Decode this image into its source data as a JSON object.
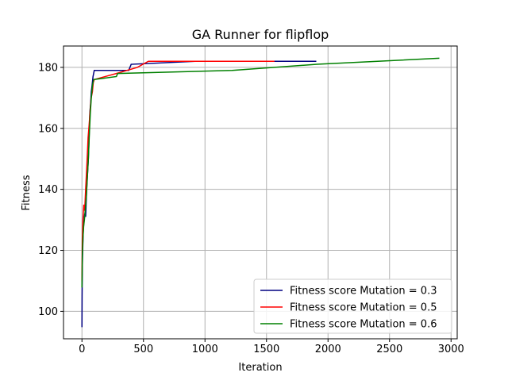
{
  "chart_data": {
    "type": "line",
    "title": "GA Runner for flipflop",
    "xlabel": "Iteration",
    "ylabel": "Fitness",
    "xlim": [
      -150,
      3050
    ],
    "ylim": [
      91,
      187
    ],
    "xticks": [
      0,
      500,
      1000,
      1500,
      2000,
      2500,
      3000
    ],
    "xtick_labels": [
      "0",
      "500",
      "1000",
      "1500",
      "2000",
      "2500",
      "3000"
    ],
    "yticks": [
      100,
      120,
      140,
      160,
      180
    ],
    "ytick_labels": [
      "100",
      "120",
      "140",
      "160",
      "180"
    ],
    "grid": true,
    "legend_position": "lower-right",
    "series": [
      {
        "name": "Fitness score Mutation = 0.3",
        "color": "#000080",
        "x": [
          0,
          0,
          1,
          1,
          3,
          3,
          6,
          6,
          10,
          10,
          15,
          15,
          22,
          22,
          30,
          30,
          38,
          38,
          45,
          45,
          52,
          52,
          58,
          58,
          64,
          64,
          70,
          70,
          76,
          76,
          82,
          82,
          90,
          90,
          100,
          100,
          380,
          380,
          400,
          400,
          920,
          920,
          1900,
          1900
        ],
        "y": [
          95,
          95,
          105,
          105,
          115,
          115,
          120,
          120,
          126,
          126,
          129,
          129,
          132,
          132,
          131,
          131,
          140,
          140,
          145,
          145,
          150,
          150,
          157,
          157,
          165,
          165,
          168,
          168,
          172,
          172,
          174,
          174,
          177,
          177,
          179,
          179,
          179,
          179,
          181,
          181,
          182,
          182,
          182,
          182
        ]
      },
      {
        "name": "Fitness score Mutation = 0.5",
        "color": "#ff0000",
        "x": [
          0,
          0,
          3,
          3,
          8,
          8,
          15,
          15,
          22,
          22,
          30,
          30,
          40,
          40,
          50,
          50,
          58,
          58,
          65,
          65,
          75,
          75,
          85,
          85,
          92,
          92,
          100,
          100,
          280,
          280,
          450,
          450,
          540,
          540,
          1560
        ],
        "y": [
          110,
          110,
          124,
          124,
          130,
          130,
          135,
          135,
          133,
          133,
          140,
          140,
          148,
          148,
          157,
          157,
          161,
          161,
          165,
          165,
          170,
          170,
          172,
          172,
          175,
          175,
          176,
          176,
          178,
          178,
          180,
          180,
          182,
          182,
          182
        ]
      },
      {
        "name": "Fitness score Mutation = 0.6",
        "color": "#008000",
        "x": [
          0,
          0,
          3,
          3,
          8,
          8,
          14,
          14,
          20,
          20,
          28,
          28,
          36,
          36,
          44,
          44,
          52,
          52,
          60,
          60,
          68,
          68,
          76,
          76,
          85,
          85,
          95,
          95,
          280,
          280,
          290,
          290,
          1220,
          1220,
          1910,
          1910,
          2900
        ],
        "y": [
          108,
          108,
          118,
          118,
          124,
          124,
          128,
          128,
          130,
          130,
          134,
          134,
          138,
          138,
          144,
          144,
          150,
          150,
          158,
          158,
          165,
          165,
          170,
          170,
          174,
          174,
          176,
          176,
          177,
          177,
          178,
          178,
          179,
          179,
          181,
          181,
          183
        ]
      }
    ]
  }
}
